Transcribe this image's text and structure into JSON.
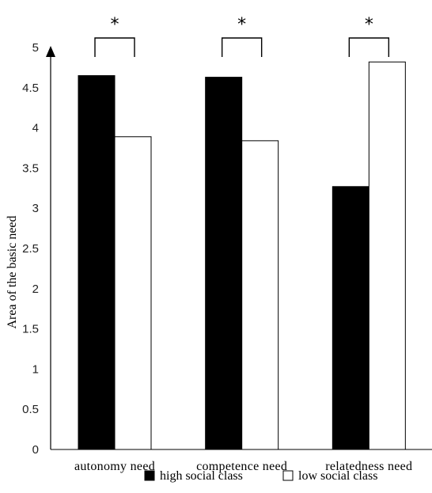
{
  "chart_data": {
    "type": "bar",
    "categories": [
      "autonomy need",
      "competence need",
      "relatedness need"
    ],
    "series": [
      {
        "name": "high social class",
        "values": [
          4.65,
          4.63,
          3.27
        ],
        "color": "#000000"
      },
      {
        "name": "low social class",
        "values": [
          3.89,
          3.84,
          4.82
        ],
        "color": "#ffffff"
      }
    ],
    "ylabel": "Area of the basic need",
    "xlabel": "",
    "ylim": [
      0,
      5
    ],
    "yticks": [
      "0",
      "0.5",
      "1",
      "1.5",
      "2",
      "2.5",
      "3",
      "3.5",
      "4",
      "4.5",
      "5"
    ],
    "significance_marker": "*",
    "grid": false,
    "legend_position": "bottom"
  }
}
